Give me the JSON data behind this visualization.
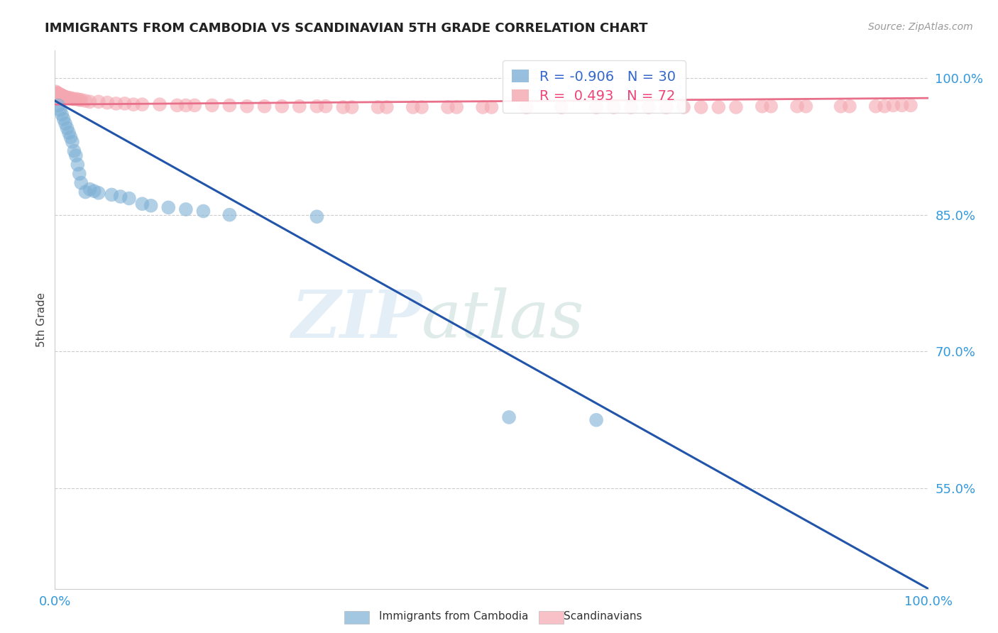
{
  "title": "IMMIGRANTS FROM CAMBODIA VS SCANDINAVIAN 5TH GRADE CORRELATION CHART",
  "source": "Source: ZipAtlas.com",
  "ylabel": "5th Grade",
  "xlim": [
    0.0,
    1.0
  ],
  "ylim": [
    0.44,
    1.03
  ],
  "yticks": [
    0.55,
    0.7,
    0.85,
    1.0
  ],
  "ytick_labels": [
    "55.0%",
    "70.0%",
    "85.0%",
    "100.0%"
  ],
  "xtick_labels": [
    "0.0%",
    "100.0%"
  ],
  "xticks": [
    0.0,
    1.0
  ],
  "legend_r_blue": "-0.906",
  "legend_n_blue": "30",
  "legend_r_pink": "0.493",
  "legend_n_pink": "72",
  "blue_color": "#7EB0D5",
  "pink_color": "#F4A7B0",
  "line_blue_color": "#2255AA",
  "line_pink_color": "#E8708A",
  "background": "#FFFFFF",
  "grid_color": "#CCCCCC",
  "blue_line_x": [
    0.0,
    1.0
  ],
  "blue_line_y": [
    0.975,
    0.44
  ],
  "pink_line_x": [
    0.0,
    1.0
  ],
  "pink_line_y": [
    0.971,
    0.978
  ],
  "blue_x": [
    0.004,
    0.006,
    0.008,
    0.01,
    0.012,
    0.014,
    0.016,
    0.018,
    0.02,
    0.022,
    0.024,
    0.026,
    0.028,
    0.03,
    0.035,
    0.04,
    0.045,
    0.05,
    0.065,
    0.075,
    0.085,
    0.1,
    0.11,
    0.13,
    0.15,
    0.17,
    0.2,
    0.3,
    0.52,
    0.62
  ],
  "blue_y": [
    0.97,
    0.965,
    0.96,
    0.955,
    0.95,
    0.945,
    0.94,
    0.935,
    0.93,
    0.92,
    0.915,
    0.905,
    0.895,
    0.885,
    0.875,
    0.878,
    0.876,
    0.874,
    0.872,
    0.87,
    0.868,
    0.862,
    0.86,
    0.858,
    0.856,
    0.854,
    0.85,
    0.848,
    0.628,
    0.625
  ],
  "pink_x": [
    0.001,
    0.002,
    0.003,
    0.004,
    0.005,
    0.006,
    0.007,
    0.008,
    0.009,
    0.01,
    0.012,
    0.013,
    0.015,
    0.016,
    0.018,
    0.02,
    0.022,
    0.025,
    0.028,
    0.03,
    0.035,
    0.04,
    0.05,
    0.06,
    0.07,
    0.08,
    0.09,
    0.1,
    0.12,
    0.14,
    0.16,
    0.18,
    0.2,
    0.22,
    0.24,
    0.28,
    0.3,
    0.34,
    0.38,
    0.42,
    0.46,
    0.5,
    0.54,
    0.58,
    0.62,
    0.66,
    0.7,
    0.74,
    0.78,
    0.82,
    0.86,
    0.9,
    0.94,
    0.96,
    0.97,
    0.98,
    0.64,
    0.68,
    0.72,
    0.76,
    0.81,
    0.85,
    0.91,
    0.95,
    0.33,
    0.37,
    0.41,
    0.45,
    0.49,
    0.15,
    0.26,
    0.31
  ],
  "pink_y": [
    0.985,
    0.984,
    0.983,
    0.983,
    0.982,
    0.982,
    0.981,
    0.981,
    0.98,
    0.98,
    0.979,
    0.979,
    0.978,
    0.978,
    0.978,
    0.977,
    0.977,
    0.977,
    0.976,
    0.976,
    0.975,
    0.974,
    0.974,
    0.973,
    0.972,
    0.972,
    0.971,
    0.971,
    0.971,
    0.97,
    0.97,
    0.97,
    0.97,
    0.969,
    0.969,
    0.969,
    0.969,
    0.968,
    0.968,
    0.968,
    0.968,
    0.968,
    0.968,
    0.968,
    0.968,
    0.968,
    0.968,
    0.968,
    0.968,
    0.969,
    0.969,
    0.969,
    0.969,
    0.97,
    0.97,
    0.97,
    0.968,
    0.968,
    0.968,
    0.968,
    0.969,
    0.969,
    0.969,
    0.969,
    0.968,
    0.968,
    0.968,
    0.968,
    0.968,
    0.97,
    0.969,
    0.969
  ]
}
